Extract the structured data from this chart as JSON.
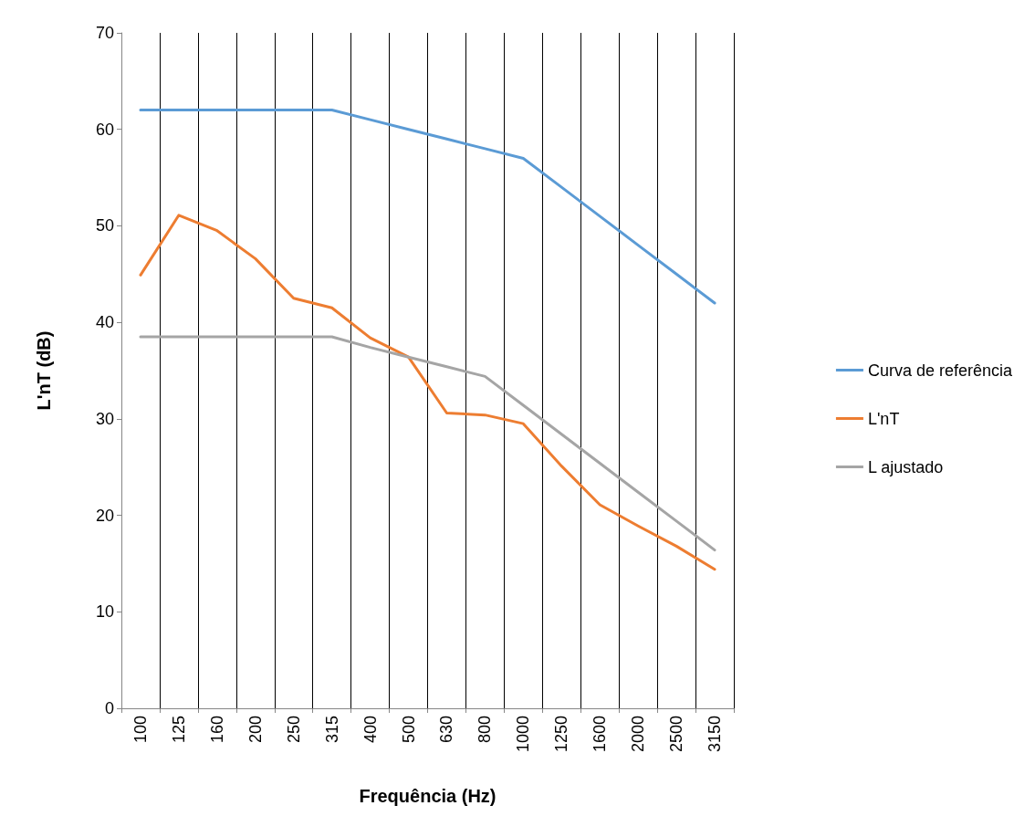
{
  "chart_data": {
    "type": "line",
    "xlabel": "Frequência (Hz)",
    "ylabel": "L'nT (dB)",
    "categories": [
      "100",
      "125",
      "160",
      "200",
      "250",
      "315",
      "400",
      "500",
      "630",
      "800",
      "1000",
      "1250",
      "1600",
      "2000",
      "2500",
      "3150"
    ],
    "series": [
      {
        "name": "Curva de referência",
        "color": "#5b9bd5",
        "values": [
          62,
          62,
          62,
          62,
          62,
          62,
          61,
          60,
          59,
          58,
          57,
          54,
          51,
          48,
          45,
          42
        ]
      },
      {
        "name": "L'nT",
        "color": "#ed7d31",
        "values": [
          44.9,
          51.1,
          49.5,
          46.6,
          42.5,
          41.5,
          38.4,
          36.4,
          30.6,
          30.4,
          29.5,
          25.1,
          21.1,
          18.9,
          16.8,
          14.4
        ]
      },
      {
        "name": "L ajustado",
        "color": "#a5a5a5",
        "values": [
          38.5,
          38.5,
          38.5,
          38.5,
          38.5,
          38.5,
          37.4,
          36.4,
          35.4,
          34.4,
          31.4,
          28.4,
          25.4,
          22.4,
          19.4,
          16.4
        ]
      }
    ],
    "ylim": [
      0,
      70
    ],
    "yticks": [
      0,
      10,
      20,
      30,
      40,
      50,
      60,
      70
    ],
    "grid": "x",
    "legend": "right",
    "marker": "none",
    "line_style": "solid"
  }
}
